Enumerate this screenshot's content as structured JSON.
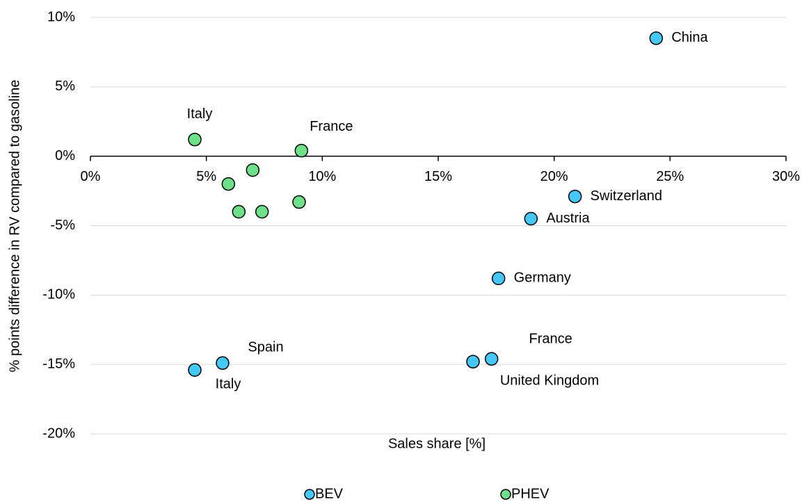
{
  "chart_data": {
    "type": "scatter",
    "xlabel": "Sales share [%]",
    "ylabel": "% points difference in RV compared to gasoline",
    "xlim": [
      0,
      30
    ],
    "xticks": [
      {
        "value": 0,
        "label": "0%"
      },
      {
        "value": 5,
        "label": "5%"
      },
      {
        "value": 10,
        "label": "10%"
      },
      {
        "value": 15,
        "label": "15%"
      },
      {
        "value": 20,
        "label": "20%"
      },
      {
        "value": 25,
        "label": "25%"
      },
      {
        "value": 30,
        "label": "30%"
      }
    ],
    "ylim": [
      -20,
      10
    ],
    "yticks": [
      {
        "value": -20,
        "label": "-20%"
      },
      {
        "value": -15,
        "label": "-15%"
      },
      {
        "value": -10,
        "label": "-10%"
      },
      {
        "value": -5,
        "label": "-5%"
      },
      {
        "value": 0,
        "label": "0%"
      },
      {
        "value": 5,
        "label": "5%"
      },
      {
        "value": 10,
        "label": "10%"
      }
    ],
    "grid": true,
    "legend": "bottom",
    "series": [
      {
        "name": "BEV",
        "color": "#45c8f5",
        "x": [
          24.4,
          20.9,
          19.0,
          17.6,
          17.3,
          16.5,
          5.7,
          4.5
        ],
        "values": [
          8.5,
          -2.9,
          -4.5,
          -8.8,
          -14.6,
          -14.8,
          -14.9,
          -15.4
        ],
        "labels": [
          "China",
          "Switzerland",
          "Austria",
          "Germany",
          "France",
          "United Kingdom",
          "Spain",
          "Italy"
        ]
      },
      {
        "name": "PHEV",
        "color": "#6ee08a",
        "x": [
          4.5,
          9.1,
          7.0,
          5.95,
          9.0,
          6.4,
          7.4
        ],
        "values": [
          1.2,
          0.4,
          -1.0,
          -2.0,
          -3.3,
          -4.0,
          -4.0
        ],
        "labels": [
          "Italy",
          "France",
          null,
          null,
          null,
          null,
          null
        ]
      }
    ]
  }
}
